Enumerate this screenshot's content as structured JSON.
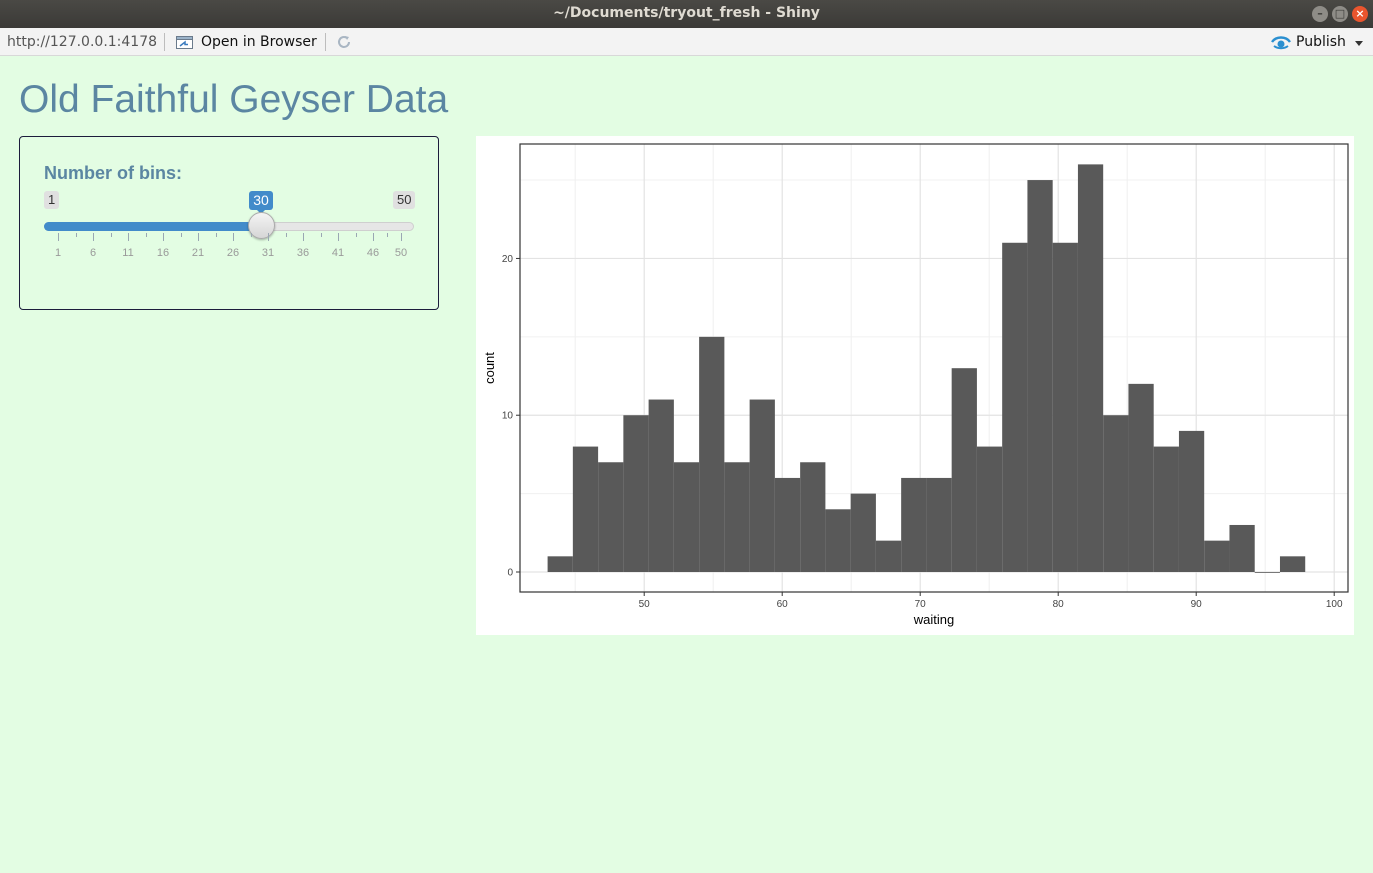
{
  "window": {
    "title": "~/Documents/tryout_fresh - Shiny"
  },
  "toolbar": {
    "url": "http://127.0.0.1:4178",
    "open_in_browser": "Open in Browser",
    "publish": "Publish"
  },
  "page": {
    "title": "Old Faithful Geyser Data"
  },
  "slider": {
    "label": "Number of bins:",
    "min": 1,
    "max": 50,
    "value": 30,
    "min_label": "1",
    "max_label": "50",
    "value_label": "30",
    "tick_labels": [
      "1",
      "6",
      "11",
      "16",
      "21",
      "26",
      "31",
      "36",
      "41",
      "46",
      "50"
    ],
    "accent_color": "#428bca"
  },
  "chart_data": {
    "type": "bar",
    "xlabel": "waiting",
    "ylabel": "count",
    "xlim": [
      41,
      101
    ],
    "ylim": [
      0,
      27.3
    ],
    "x_ticks": [
      50,
      60,
      70,
      80,
      90,
      100
    ],
    "y_ticks": [
      0,
      10,
      20
    ],
    "bin_width": 1.83,
    "bins": [
      {
        "x": 43,
        "count": 1
      },
      {
        "x": 44.83,
        "count": 8
      },
      {
        "x": 46.66,
        "count": 7
      },
      {
        "x": 48.49,
        "count": 10
      },
      {
        "x": 50.32,
        "count": 11
      },
      {
        "x": 52.15,
        "count": 7
      },
      {
        "x": 53.98,
        "count": 15
      },
      {
        "x": 55.81,
        "count": 7
      },
      {
        "x": 57.64,
        "count": 11
      },
      {
        "x": 59.47,
        "count": 6
      },
      {
        "x": 61.3,
        "count": 7
      },
      {
        "x": 63.13,
        "count": 4
      },
      {
        "x": 64.96,
        "count": 5
      },
      {
        "x": 66.79,
        "count": 2
      },
      {
        "x": 68.62,
        "count": 6
      },
      {
        "x": 70.45,
        "count": 6
      },
      {
        "x": 72.28,
        "count": 13
      },
      {
        "x": 74.11,
        "count": 8
      },
      {
        "x": 75.94,
        "count": 21
      },
      {
        "x": 77.77,
        "count": 25
      },
      {
        "x": 79.6,
        "count": 21
      },
      {
        "x": 81.43,
        "count": 26
      },
      {
        "x": 83.26,
        "count": 10
      },
      {
        "x": 85.09,
        "count": 12
      },
      {
        "x": 86.92,
        "count": 8
      },
      {
        "x": 88.75,
        "count": 9
      },
      {
        "x": 90.58,
        "count": 2
      },
      {
        "x": 92.41,
        "count": 3
      },
      {
        "x": 94.24,
        "count": 0
      },
      {
        "x": 96.07,
        "count": 1
      }
    ],
    "bar_color": "#595959",
    "grid": true,
    "legend": "none"
  }
}
